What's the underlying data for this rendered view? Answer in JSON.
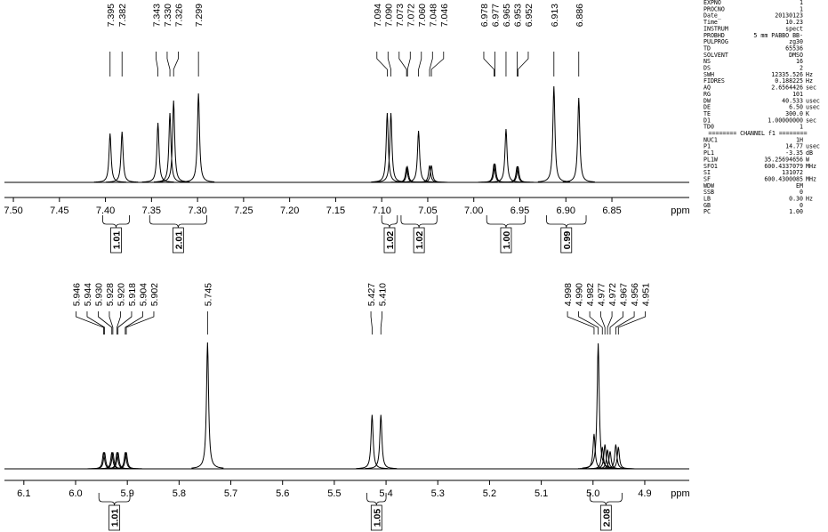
{
  "chart_data": [
    {
      "type": "nmr",
      "x_label": "ppm",
      "xlim": [
        7.5097,
        6.766
      ],
      "ylim": [
        0,
        115
      ],
      "xticks": [
        {
          "value": 7.5,
          "label": "7.50"
        },
        7.45,
        {
          "value": 7.4,
          "label": "7.40"
        },
        7.35,
        {
          "value": 7.3,
          "label": "7.30"
        },
        7.25,
        {
          "value": 7.2,
          "label": "7.20"
        },
        7.15,
        {
          "value": 7.1,
          "label": "7.10"
        },
        7.05,
        {
          "value": 7.0,
          "label": "7.00"
        },
        6.95,
        {
          "value": 6.9,
          "label": "6.90"
        },
        6.85
      ],
      "peaks": {
        "x": [
          7.395,
          7.382,
          7.343,
          7.33,
          7.326,
          7.299,
          7.094,
          7.09,
          7.073,
          7.072,
          7.06,
          7.048,
          7.046,
          6.978,
          6.977,
          6.965,
          6.953,
          6.952,
          6.913,
          6.886
        ],
        "x_labels": [
          "7.395",
          "7.382",
          "7.343",
          "7.330",
          "7.326",
          "7.299",
          "7.094",
          "7.090",
          "7.073",
          "7.072",
          "7.060",
          "7.048",
          "7.046",
          "6.978",
          "6.977",
          "6.965",
          "6.953",
          "6.952",
          "6.913",
          "6.886"
        ],
        "values": [
          55,
          57,
          67,
          78,
          92,
          100,
          78,
          78,
          17,
          17,
          58,
          19,
          19,
          21,
          21,
          60,
          18,
          18,
          108,
          95
        ]
      },
      "integrals": {
        "ranges": [
          [
            7.403,
            7.374
          ],
          [
            7.352,
            7.29
          ],
          [
            7.1,
            7.083
          ],
          [
            7.079,
            7.04
          ],
          [
            6.986,
            6.944
          ],
          [
            6.921,
            6.878
          ]
        ],
        "values": [
          1.01,
          2.01,
          1.02,
          1.02,
          1.0,
          0.99
        ],
        "value_labels": [
          "1.01",
          "2.01",
          "1.02",
          "1.02",
          "1.00",
          "0.99"
        ]
      }
    },
    {
      "type": "nmr",
      "x_label": "ppm",
      "xlim": [
        6.1375,
        4.814
      ],
      "ylim": [
        0,
        150
      ],
      "xticks": [
        6.1,
        {
          "value": 6.0,
          "label": "6.0"
        },
        5.9,
        5.8,
        5.7,
        5.6,
        5.5,
        5.4,
        5.3,
        5.2,
        5.1,
        {
          "value": 5.0,
          "label": "5.0"
        },
        4.9
      ],
      "peaks": {
        "x": [
          5.946,
          5.944,
          5.93,
          5.928,
          5.92,
          5.918,
          5.904,
          5.902,
          5.745,
          5.427,
          5.41,
          4.998,
          4.99,
          4.982,
          4.977,
          4.972,
          4.967,
          4.956,
          4.951
        ],
        "x_labels": [
          "5.946",
          "5.944",
          "5.930",
          "5.928",
          "5.920",
          "5.918",
          "5.904",
          "5.902",
          "5.745",
          "5.427",
          "5.410",
          "4.998",
          "4.990",
          "4.982",
          "4.977",
          "4.972",
          "4.967",
          "4.956",
          "4.951"
        ],
        "values": [
          19,
          19,
          19,
          19,
          19,
          19,
          19,
          19,
          145,
          62,
          62,
          40,
          144,
          25,
          28,
          22,
          20,
          28,
          25
        ]
      },
      "integrals": {
        "ranges": [
          [
            5.955,
            5.895
          ],
          [
            5.437,
            5.4
          ],
          [
            5.006,
            4.944
          ]
        ],
        "values": [
          1.01,
          1.05,
          2.08
        ],
        "value_labels": [
          "1.01",
          "1.05",
          "2.08"
        ]
      }
    }
  ],
  "parameters": [
    [
      "EXPNO",
      "1"
    ],
    [
      "PROCNO",
      "1"
    ],
    [
      "Date_",
      "20130123"
    ],
    [
      "Time",
      "10.23"
    ],
    [
      "INSTRUM",
      "spect"
    ],
    [
      "PROBHD",
      "5 mm PABBO BB-"
    ],
    [
      "PULPROG",
      "zg30"
    ],
    [
      "TD",
      "65536"
    ],
    [
      "SOLVENT",
      "DMSO"
    ],
    [
      "NS",
      "16"
    ],
    [
      "DS",
      "2"
    ],
    [
      "SWH",
      "12335.526",
      "Hz"
    ],
    [
      "FIDRES",
      "0.188225",
      "Hz"
    ],
    [
      "AQ",
      "2.6564426",
      "sec"
    ],
    [
      "RG",
      "101"
    ],
    [
      "DW",
      "40.533",
      "usec"
    ],
    [
      "DE",
      "6.50",
      "usec"
    ],
    [
      "TE",
      "300.0",
      "K"
    ],
    [
      "D1",
      "1.00000000",
      "sec"
    ],
    [
      "TD0",
      "1"
    ],
    [
      "======== CHANNEL f1 ========"
    ],
    [
      "NUC1",
      "1H"
    ],
    [
      "P1",
      "14.77",
      "usec"
    ],
    [
      "PL1",
      "-3.35",
      "dB"
    ],
    [
      "PL1W",
      "35.25694656",
      "W"
    ],
    [
      "SFO1",
      "600.4337079",
      "MHz"
    ],
    [
      "SI",
      "131072"
    ],
    [
      "SF",
      "600.4300085",
      "MHz"
    ],
    [
      "WDW",
      "EM"
    ],
    [
      "SSB",
      "0"
    ],
    [
      "LB",
      "0.30",
      "Hz"
    ],
    [
      "GB",
      "0"
    ],
    [
      "PC",
      "1.00"
    ]
  ]
}
